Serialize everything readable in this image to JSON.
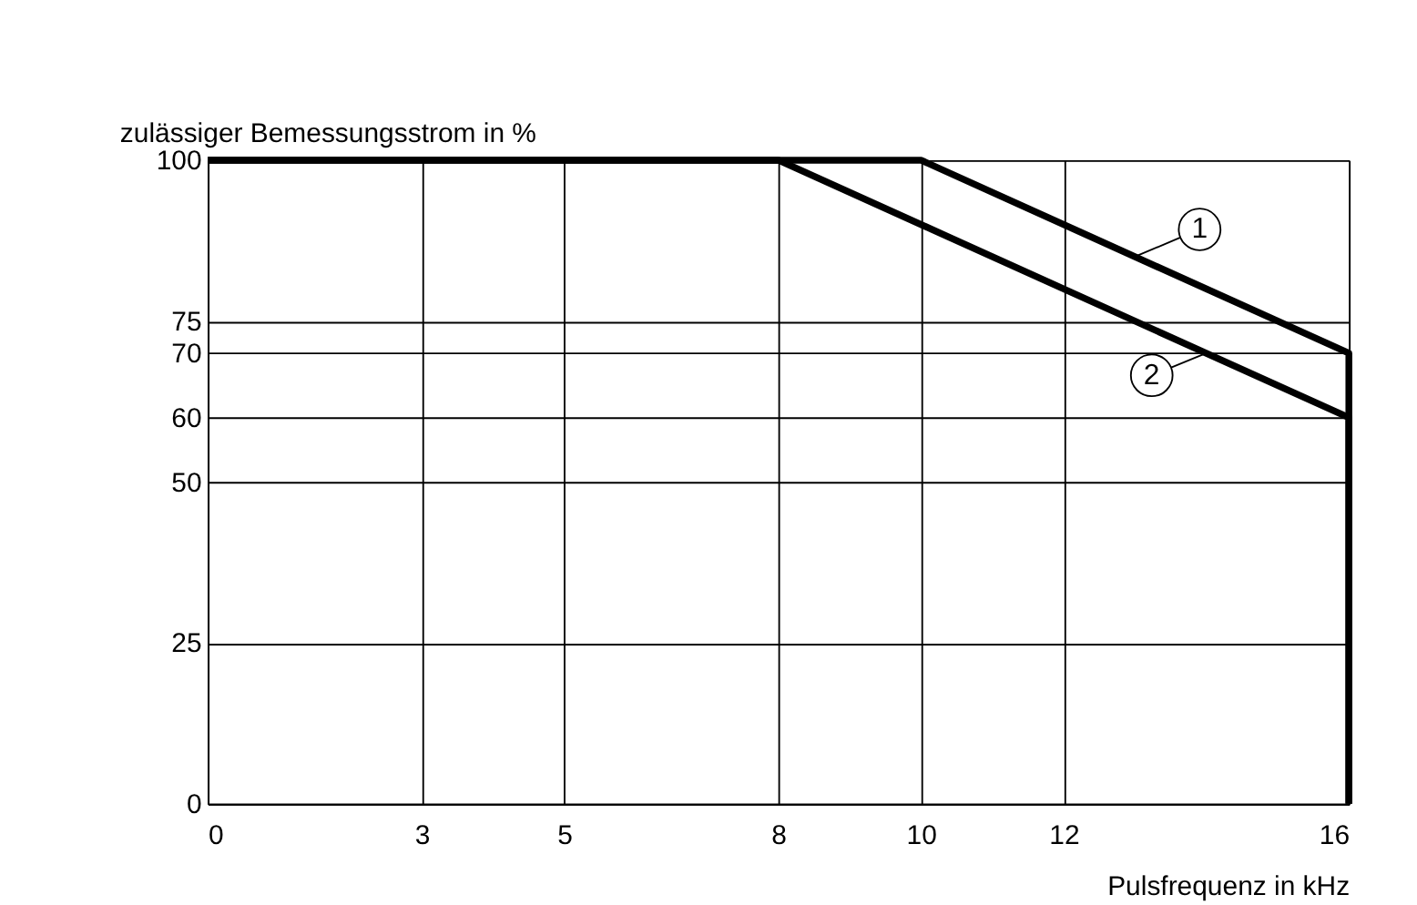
{
  "chart_data": {
    "type": "line",
    "xlabel": "Pulsfrequenz in kHz",
    "ylabel": "zulässiger Bemessungsstrom in %",
    "series": [
      {
        "color": "#000000",
        "x": [
          0,
          10,
          16,
          16
        ],
        "values": [
          100,
          100,
          70,
          0
        ]
      },
      {
        "color": "#000000",
        "x": [
          0,
          8,
          16,
          16
        ],
        "values": [
          100,
          100,
          60,
          0
        ]
      }
    ],
    "annotations": [
      {
        "text": "1",
        "x": 13.0,
        "y": 85
      },
      {
        "text": "2",
        "x": 14.0,
        "y": 70
      }
    ],
    "xlim": [
      0,
      16
    ],
    "xticks": [
      0,
      3,
      5,
      8,
      10,
      12,
      16
    ],
    "ylim": [
      0,
      100
    ],
    "yticks": [
      0,
      25,
      50,
      60,
      70,
      75,
      100
    ],
    "grid": true,
    "marker": "none",
    "line_style": "solid"
  }
}
